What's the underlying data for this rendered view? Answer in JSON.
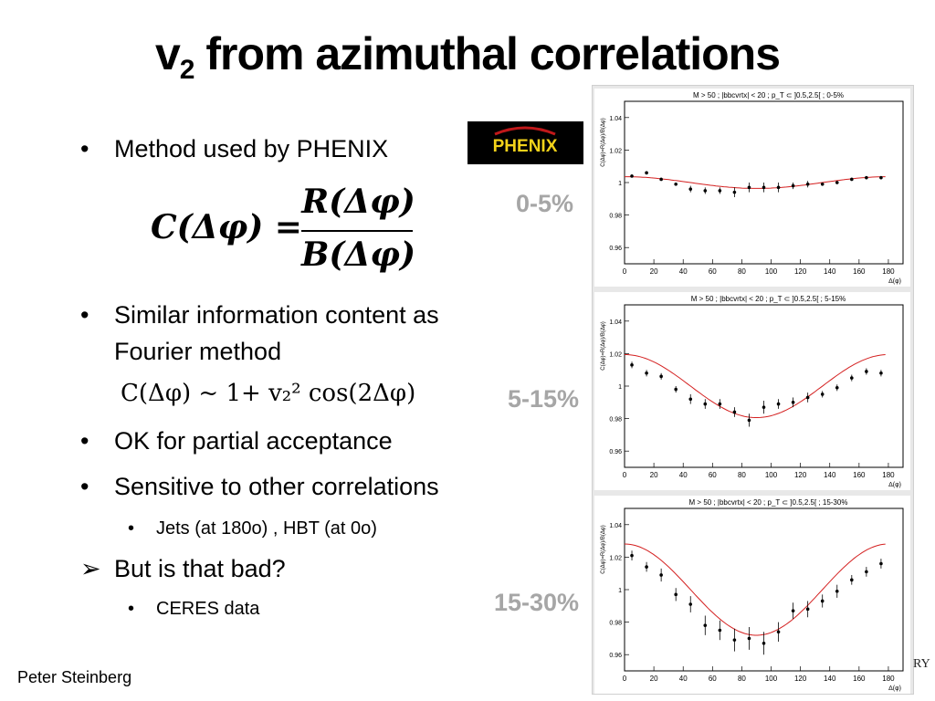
{
  "slide": {
    "title_main": "v",
    "title_sub": "2",
    "title_rest": " from azimuthal correlations",
    "footer": "Peter Steinberg",
    "logo_text": "PHENIX",
    "corner_text": "RY"
  },
  "bullets": [
    {
      "marker": "•",
      "text": "Method used by PHENIX"
    },
    {
      "marker": "•",
      "text": "Similar information content as"
    },
    {
      "marker": "",
      "text": "Fourier method"
    },
    {
      "marker": "•",
      "text": "OK for partial acceptance"
    },
    {
      "marker": "•",
      "text": "Sensitive to other correlations"
    },
    {
      "marker": "•",
      "text": "Jets (at 180o) , HBT (at 0o)"
    },
    {
      "marker": "➢",
      "text": "But is that bad?"
    },
    {
      "marker": "•",
      "text": "CERES data"
    }
  ],
  "equations": {
    "main_lhs": "C(Δφ) =",
    "main_num": "R(Δφ)",
    "main_den": "B(Δφ)",
    "fourier": "C(Δφ) ~ 1+ v₂² cos(2Δφ)"
  },
  "centrality_labels": [
    "0-5%",
    "5-15%",
    "15-30%"
  ],
  "chart_data": [
    {
      "type": "scatter",
      "title": "M > 50 ; |bbcvrtx| < 20 ; p_T ⊂ ]0.5,2.5[ ; 0-5%",
      "xlabel": "Δ(φ)",
      "ylabel": "C(Δφ)=R(Δφ)/B(Δφ)",
      "xlim": [
        0,
        190
      ],
      "ylim": [
        0.95,
        1.05
      ],
      "xticks": [
        0,
        20,
        40,
        60,
        80,
        100,
        120,
        140,
        160,
        180
      ],
      "yticks": [
        0.96,
        0.98,
        1,
        1.02,
        1.04
      ],
      "x": [
        5,
        15,
        25,
        35,
        45,
        55,
        65,
        75,
        85,
        95,
        105,
        115,
        125,
        135,
        145,
        155,
        165,
        175
      ],
      "y": [
        1.004,
        1.006,
        1.002,
        0.999,
        0.996,
        0.995,
        0.995,
        0.994,
        0.997,
        0.997,
        0.997,
        0.998,
        0.999,
        0.999,
        1.0,
        1.002,
        1.003,
        1.003
      ],
      "yerr": [
        0.001,
        0.001,
        0.001,
        0.001,
        0.002,
        0.002,
        0.002,
        0.003,
        0.003,
        0.003,
        0.003,
        0.002,
        0.002,
        0.001,
        0.001,
        0.001,
        0.001,
        0.001
      ],
      "fit": {
        "type": "1+2v2^2cos(2x)",
        "v2": 0.0425
      }
    },
    {
      "type": "scatter",
      "title": "M > 50 ; |bbcvrtx| < 20 ; p_T ⊂ ]0.5,2.5[ ; 5-15%",
      "xlabel": "Δ(φ)",
      "ylabel": "C(Δφ)=R(Δφ)/B(Δφ)",
      "xlim": [
        0,
        190
      ],
      "ylim": [
        0.95,
        1.05
      ],
      "xticks": [
        0,
        20,
        40,
        60,
        80,
        100,
        120,
        140,
        160,
        180
      ],
      "yticks": [
        0.96,
        0.98,
        1,
        1.02,
        1.04
      ],
      "x": [
        5,
        15,
        25,
        35,
        45,
        55,
        65,
        75,
        85,
        95,
        105,
        115,
        125,
        135,
        145,
        155,
        165,
        175
      ],
      "y": [
        1.013,
        1.008,
        1.006,
        0.998,
        0.992,
        0.989,
        0.989,
        0.984,
        0.979,
        0.987,
        0.989,
        0.99,
        0.993,
        0.995,
        0.999,
        1.005,
        1.009,
        1.008
      ],
      "yerr": [
        0.002,
        0.002,
        0.002,
        0.002,
        0.003,
        0.003,
        0.003,
        0.003,
        0.004,
        0.004,
        0.003,
        0.003,
        0.003,
        0.002,
        0.002,
        0.002,
        0.002,
        0.002
      ],
      "fit": {
        "type": "1+2v2^2cos(2x)",
        "v2": 0.0985
      }
    },
    {
      "type": "scatter",
      "title": "M > 50 ; |bbcvrtx| < 20 ; p_T ⊂ ]0.5,2.5[ ; 15-30%",
      "xlabel": "Δ(φ)",
      "ylabel": "C(Δφ)=R(Δφ)/B(Δφ)",
      "xlim": [
        0,
        190
      ],
      "ylim": [
        0.95,
        1.05
      ],
      "xticks": [
        0,
        20,
        40,
        60,
        80,
        100,
        120,
        140,
        160,
        180
      ],
      "yticks": [
        0.96,
        0.98,
        1,
        1.02,
        1.04
      ],
      "x": [
        5,
        15,
        25,
        35,
        45,
        55,
        65,
        75,
        85,
        95,
        105,
        115,
        125,
        135,
        145,
        155,
        165,
        175
      ],
      "y": [
        1.021,
        1.014,
        1.009,
        0.997,
        0.991,
        0.978,
        0.975,
        0.969,
        0.97,
        0.967,
        0.974,
        0.987,
        0.988,
        0.993,
        0.999,
        1.006,
        1.011,
        1.016
      ],
      "yerr": [
        0.003,
        0.003,
        0.004,
        0.004,
        0.005,
        0.006,
        0.006,
        0.007,
        0.007,
        0.007,
        0.006,
        0.005,
        0.005,
        0.004,
        0.004,
        0.003,
        0.003,
        0.003
      ],
      "fit": {
        "type": "1+2v2^2cos(2x)",
        "v2": 0.1185
      }
    }
  ]
}
